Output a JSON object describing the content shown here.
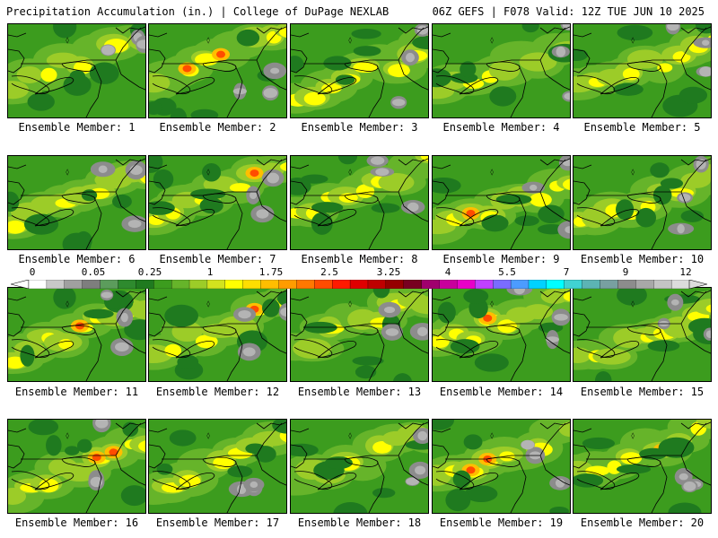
{
  "header": {
    "title": "Precipitation Accumulation (in.) | College of DuPage NEXLAB",
    "run_info": "06Z GEFS | F078 Valid: 12Z TUE JUN 10 2025"
  },
  "panels": [
    {
      "label": "Ensemble Member: 1"
    },
    {
      "label": "Ensemble Member: 2"
    },
    {
      "label": "Ensemble Member: 3"
    },
    {
      "label": "Ensemble Member: 4"
    },
    {
      "label": "Ensemble Member: 5"
    },
    {
      "label": "Ensemble Member: 6"
    },
    {
      "label": "Ensemble Member: 7"
    },
    {
      "label": "Ensemble Member: 8"
    },
    {
      "label": "Ensemble Member: 9"
    },
    {
      "label": "Ensemble Member: 10"
    },
    {
      "label": "Ensemble Member: 11"
    },
    {
      "label": "Ensemble Member: 12"
    },
    {
      "label": "Ensemble Member: 13"
    },
    {
      "label": "Ensemble Member: 14"
    },
    {
      "label": "Ensemble Member: 15"
    },
    {
      "label": "Ensemble Member: 16"
    },
    {
      "label": "Ensemble Member: 17"
    },
    {
      "label": "Ensemble Member: 18"
    },
    {
      "label": "Ensemble Member: 19"
    },
    {
      "label": "Ensemble Member: 20"
    }
  ],
  "colorbar": {
    "labels": [
      "0",
      "0.05",
      "0.25",
      "1",
      "1.75",
      "2.5",
      "3.25",
      "4",
      "5.5",
      "7",
      "9",
      "12"
    ],
    "colors": [
      "#ffffff",
      "#c8c8c8",
      "#a0a0a0",
      "#7e7e7e",
      "#5c9c5c",
      "#2e8a2e",
      "#1f7a1f",
      "#3c9c1e",
      "#66b42a",
      "#9ccc28",
      "#d2e31e",
      "#ffff00",
      "#ffde00",
      "#ffbe00",
      "#ff9c00",
      "#ff7800",
      "#ff4c00",
      "#ff1a00",
      "#e00000",
      "#be0000",
      "#960000",
      "#780020",
      "#a0006e",
      "#c8009c",
      "#e800c8",
      "#c040ff",
      "#7a6cff",
      "#4c9cff",
      "#00d2ff",
      "#00ffff",
      "#40d2d2",
      "#5cb4b4",
      "#78a0a0",
      "#8c8c8c",
      "#a8a8a8",
      "#c4c4c4",
      "#dcdcdc"
    ]
  }
}
